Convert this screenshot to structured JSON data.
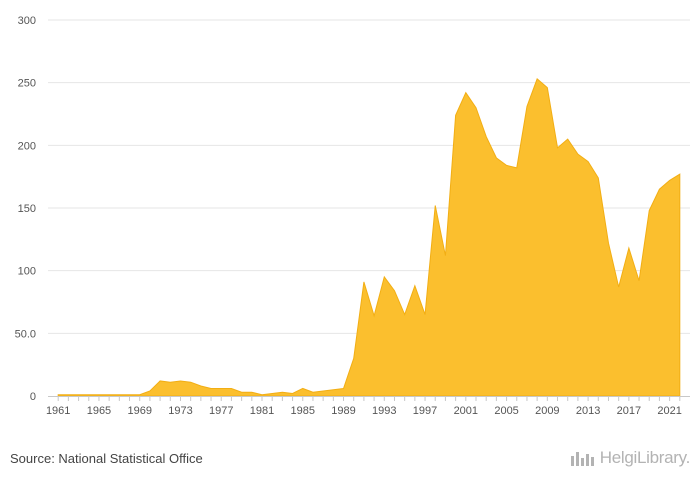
{
  "chart_data": {
    "type": "area",
    "title": "",
    "xlabel": "",
    "ylabel": "",
    "ylim": [
      0,
      300
    ],
    "yticks": [
      "0",
      "50.0",
      "100",
      "150",
      "200",
      "250",
      "300"
    ],
    "ytick_values": [
      0,
      50,
      100,
      150,
      200,
      250,
      300
    ],
    "xticks": [
      "1961",
      "1965",
      "1969",
      "1973",
      "1977",
      "1981",
      "1985",
      "1989",
      "1993",
      "1997",
      "2001",
      "2005",
      "2009",
      "2013",
      "2017",
      "2021"
    ],
    "grid": "horizontal",
    "color": "#FBBF2E",
    "series": [
      {
        "x": [
          1961,
          1962,
          1963,
          1964,
          1965,
          1966,
          1967,
          1968,
          1969,
          1970,
          1971,
          1972,
          1973,
          1974,
          1975,
          1976,
          1977,
          1978,
          1979,
          1980,
          1981,
          1982,
          1983,
          1984,
          1985,
          1986,
          1987,
          1988,
          1989,
          1990,
          1991,
          1992,
          1993,
          1994,
          1995,
          1996,
          1997,
          1998,
          1999,
          2000,
          2001,
          2002,
          2003,
          2004,
          2005,
          2006,
          2007,
          2008,
          2009,
          2010,
          2011,
          2012,
          2013,
          2014,
          2015,
          2016,
          2017,
          2018,
          2019,
          2020,
          2021,
          2022
        ],
        "values": [
          1,
          1,
          1,
          1,
          1,
          1,
          1,
          1,
          1,
          4,
          12,
          11,
          12,
          11,
          8,
          6,
          6,
          6,
          3,
          3,
          1,
          2,
          3,
          2,
          6,
          3,
          4,
          5,
          6,
          30,
          91,
          64,
          95,
          84,
          65,
          88,
          65,
          152,
          112,
          224,
          242,
          230,
          207,
          190,
          184,
          182,
          231,
          253,
          246,
          198,
          205,
          193,
          187,
          174,
          122,
          87,
          118,
          92,
          148,
          165,
          172,
          177
        ]
      }
    ]
  },
  "footer": {
    "source": "Source: National Statistical Office",
    "logo_text": "HelgiLibrary."
  }
}
